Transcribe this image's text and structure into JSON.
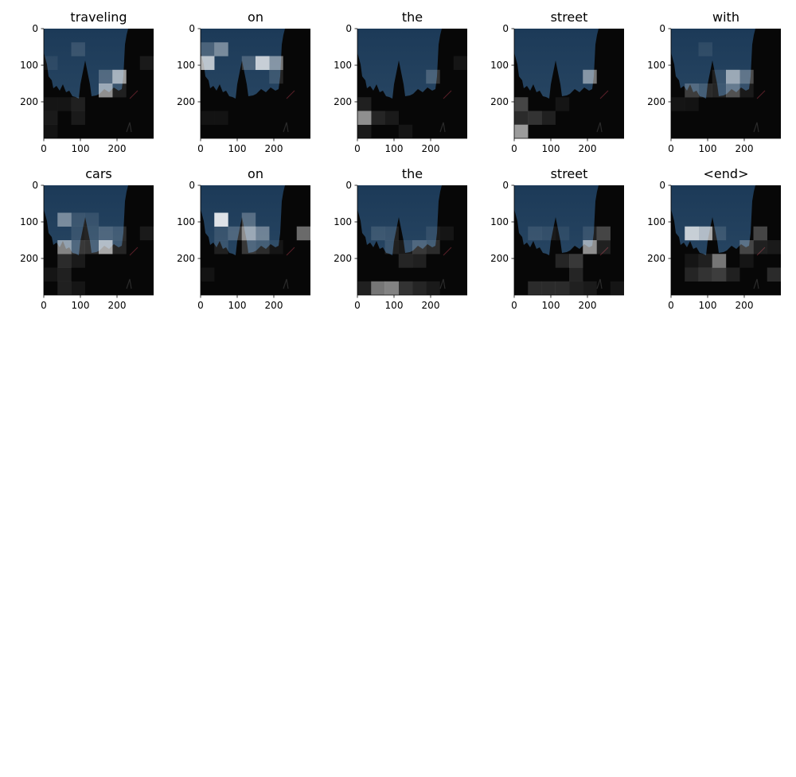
{
  "chart_data": {
    "type": "heatmap",
    "grid_layout": {
      "rows": 2,
      "cols": 5
    },
    "x_range": [
      0,
      300
    ],
    "y_range": [
      0,
      300
    ],
    "x_ticks": [
      0,
      100,
      200
    ],
    "y_ticks": [
      0,
      100,
      200
    ],
    "attention_grid_size": 8,
    "attention_cell_size": 37.5,
    "colors": {
      "sky_top": "#1c3a58",
      "sky_bottom": "#2c4a66",
      "silhouette": "#070707",
      "attention": "#ffffff",
      "axis": "#000000"
    },
    "panels": [
      {
        "word": "traveling",
        "cells": [
          [
            2,
            1,
            0.12
          ],
          [
            0,
            2,
            0.06
          ],
          [
            4,
            3,
            0.22
          ],
          [
            5,
            3,
            0.6
          ],
          [
            7,
            2,
            0.08
          ],
          [
            4,
            4,
            0.55
          ],
          [
            5,
            4,
            0.1
          ],
          [
            0,
            5,
            0.06
          ],
          [
            1,
            5,
            0.06
          ],
          [
            2,
            5,
            0.1
          ],
          [
            0,
            6,
            0.08
          ],
          [
            2,
            6,
            0.08
          ],
          [
            0,
            7,
            0.05
          ]
        ]
      },
      {
        "word": "on",
        "cells": [
          [
            0,
            1,
            0.2
          ],
          [
            1,
            1,
            0.4
          ],
          [
            0,
            2,
            0.7
          ],
          [
            4,
            2,
            0.75
          ],
          [
            5,
            2,
            0.45
          ],
          [
            3,
            2,
            0.2
          ],
          [
            5,
            3,
            0.12
          ],
          [
            0,
            6,
            0.05
          ],
          [
            1,
            6,
            0.05
          ]
        ]
      },
      {
        "word": "the",
        "cells": [
          [
            5,
            3,
            0.18
          ],
          [
            0,
            5,
            0.1
          ],
          [
            0,
            6,
            0.55
          ],
          [
            1,
            6,
            0.12
          ],
          [
            2,
            6,
            0.08
          ],
          [
            0,
            7,
            0.08
          ],
          [
            3,
            7,
            0.06
          ],
          [
            7,
            2,
            0.06
          ]
        ]
      },
      {
        "word": "street",
        "cells": [
          [
            5,
            3,
            0.45
          ],
          [
            0,
            5,
            0.25
          ],
          [
            0,
            6,
            0.15
          ],
          [
            1,
            6,
            0.18
          ],
          [
            2,
            6,
            0.1
          ],
          [
            0,
            7,
            0.6
          ],
          [
            3,
            5,
            0.06
          ]
        ]
      },
      {
        "word": "with",
        "cells": [
          [
            2,
            1,
            0.08
          ],
          [
            4,
            3,
            0.55
          ],
          [
            5,
            3,
            0.28
          ],
          [
            3,
            3,
            0.1
          ],
          [
            1,
            4,
            0.22
          ],
          [
            2,
            4,
            0.15
          ],
          [
            3,
            4,
            0.12
          ],
          [
            4,
            4,
            0.3
          ],
          [
            5,
            4,
            0.08
          ],
          [
            0,
            5,
            0.06
          ],
          [
            1,
            5,
            0.05
          ]
        ]
      },
      {
        "word": "cars",
        "cells": [
          [
            1,
            2,
            0.4
          ],
          [
            2,
            2,
            0.12
          ],
          [
            3,
            2,
            0.1
          ],
          [
            4,
            3,
            0.2
          ],
          [
            2,
            3,
            0.1
          ],
          [
            3,
            3,
            0.12
          ],
          [
            5,
            3,
            0.15
          ],
          [
            7,
            3,
            0.08
          ],
          [
            1,
            4,
            0.5
          ],
          [
            2,
            4,
            0.2
          ],
          [
            3,
            4,
            0.18
          ],
          [
            4,
            4,
            0.65
          ],
          [
            5,
            4,
            0.12
          ],
          [
            1,
            5,
            0.15
          ],
          [
            2,
            5,
            0.08
          ],
          [
            1,
            6,
            0.1
          ],
          [
            0,
            6,
            0.06
          ],
          [
            1,
            7,
            0.1
          ],
          [
            2,
            7,
            0.06
          ]
        ]
      },
      {
        "word": "on",
        "cells": [
          [
            1,
            2,
            0.85
          ],
          [
            3,
            2,
            0.25
          ],
          [
            2,
            3,
            0.2
          ],
          [
            3,
            3,
            0.55
          ],
          [
            4,
            3,
            0.35
          ],
          [
            1,
            3,
            0.1
          ],
          [
            7,
            3,
            0.4
          ],
          [
            3,
            4,
            0.2
          ],
          [
            4,
            4,
            0.15
          ],
          [
            1,
            4,
            0.1
          ],
          [
            5,
            4,
            0.06
          ],
          [
            0,
            6,
            0.05
          ]
        ]
      },
      {
        "word": "the",
        "cells": [
          [
            1,
            3,
            0.12
          ],
          [
            2,
            3,
            0.1
          ],
          [
            5,
            3,
            0.08
          ],
          [
            6,
            3,
            0.06
          ],
          [
            2,
            4,
            0.1
          ],
          [
            3,
            4,
            0.08
          ],
          [
            4,
            4,
            0.2
          ],
          [
            5,
            4,
            0.15
          ],
          [
            3,
            5,
            0.12
          ],
          [
            4,
            5,
            0.1
          ],
          [
            0,
            7,
            0.1
          ],
          [
            1,
            7,
            0.45
          ],
          [
            2,
            7,
            0.5
          ],
          [
            3,
            7,
            0.18
          ],
          [
            4,
            7,
            0.12
          ],
          [
            5,
            7,
            0.08
          ]
        ]
      },
      {
        "word": "street",
        "cells": [
          [
            1,
            3,
            0.1
          ],
          [
            2,
            3,
            0.08
          ],
          [
            3,
            3,
            0.06
          ],
          [
            5,
            3,
            0.1
          ],
          [
            6,
            3,
            0.25
          ],
          [
            5,
            4,
            0.55
          ],
          [
            6,
            4,
            0.1
          ],
          [
            3,
            5,
            0.12
          ],
          [
            4,
            5,
            0.2
          ],
          [
            4,
            6,
            0.12
          ],
          [
            1,
            7,
            0.15
          ],
          [
            2,
            7,
            0.15
          ],
          [
            3,
            7,
            0.15
          ],
          [
            4,
            7,
            0.1
          ],
          [
            5,
            7,
            0.08
          ],
          [
            7,
            7,
            0.06
          ]
        ]
      },
      {
        "word": "<end>",
        "cells": [
          [
            1,
            3,
            0.75
          ],
          [
            2,
            3,
            0.65
          ],
          [
            3,
            3,
            0.12
          ],
          [
            6,
            3,
            0.25
          ],
          [
            5,
            4,
            0.25
          ],
          [
            6,
            4,
            0.1
          ],
          [
            7,
            4,
            0.08
          ],
          [
            1,
            5,
            0.06
          ],
          [
            2,
            5,
            0.1
          ],
          [
            3,
            5,
            0.45
          ],
          [
            1,
            6,
            0.12
          ],
          [
            2,
            6,
            0.18
          ],
          [
            3,
            6,
            0.22
          ],
          [
            4,
            6,
            0.1
          ],
          [
            7,
            6,
            0.15
          ],
          [
            5,
            5,
            0.06
          ]
        ]
      }
    ]
  }
}
